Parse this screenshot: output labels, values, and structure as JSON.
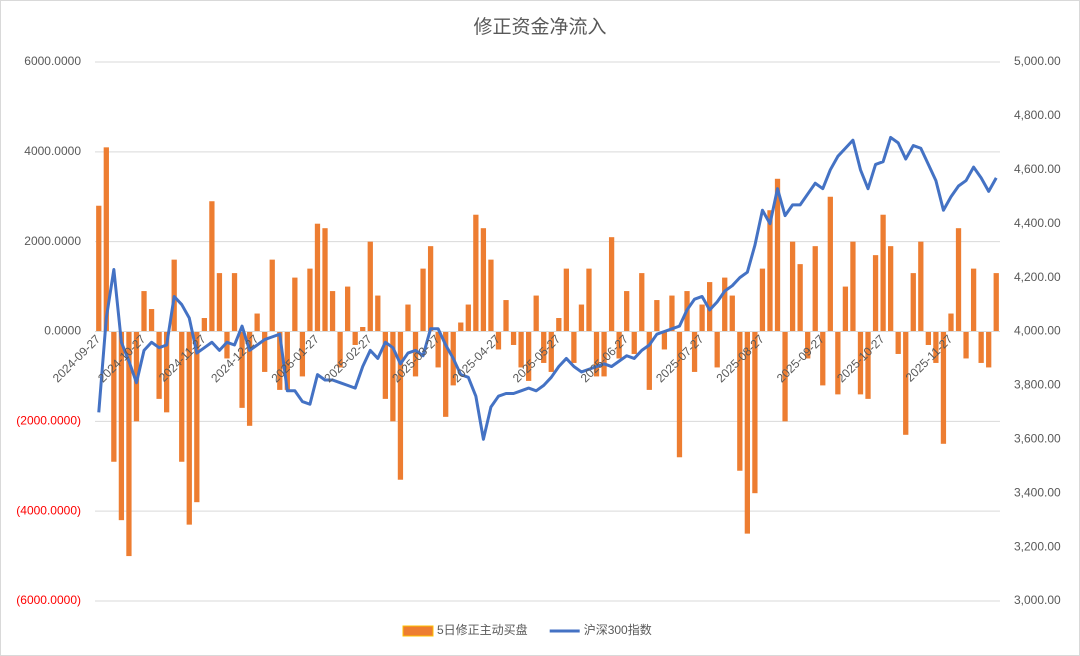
{
  "chart_data": {
    "type": "bar-line",
    "title": "修正资金净流入",
    "categories": [
      "2024-09-27",
      null,
      null,
      null,
      null,
      null,
      "2024-10-27",
      null,
      null,
      null,
      null,
      null,
      null,
      null,
      "2024-11-27",
      null,
      null,
      null,
      null,
      null,
      null,
      "2024-12-27",
      null,
      null,
      null,
      null,
      null,
      null,
      null,
      "2025-01-27",
      null,
      null,
      null,
      null,
      null,
      null,
      "2025-02-27",
      null,
      null,
      null,
      null,
      null,
      null,
      null,
      null,
      "2025-03-27",
      null,
      null,
      null,
      null,
      null,
      null,
      null,
      "2025-04-27",
      null,
      null,
      null,
      null,
      null,
      null,
      null,
      "2025-05-27",
      null,
      null,
      null,
      null,
      null,
      null,
      null,
      null,
      "2025-06-27",
      null,
      null,
      null,
      null,
      null,
      null,
      null,
      null,
      null,
      "2025-07-27",
      null,
      null,
      null,
      null,
      null,
      null,
      null,
      "2025-08-27",
      null,
      null,
      null,
      null,
      null,
      null,
      null,
      "2025-09-27",
      null,
      null,
      null,
      null,
      null,
      null,
      null,
      "2025-10-27",
      null,
      null,
      null,
      null,
      null,
      null,
      null,
      null,
      "2025-11-27",
      null,
      null,
      null,
      null,
      null,
      null
    ],
    "series": [
      {
        "name": "5日修正主动买盘",
        "type": "bar",
        "color": "#ed7d31",
        "axis": "y",
        "values": [
          2800,
          4100,
          -2900,
          -4200,
          -5000,
          -2000,
          900,
          500,
          -1500,
          -1800,
          1600,
          -2900,
          -4300,
          -3800,
          300,
          2900,
          1300,
          -600,
          1300,
          -1700,
          -2100,
          400,
          -900,
          1600,
          -1300,
          -1300,
          1200,
          -1000,
          1400,
          2400,
          2300,
          900,
          -800,
          1000,
          -300,
          100,
          2000,
          800,
          -1500,
          -2000,
          -3300,
          600,
          -1000,
          1400,
          1900,
          -800,
          -1900,
          -1200,
          200,
          600,
          2600,
          2300,
          1600,
          -400,
          700,
          -300,
          -800,
          -1100,
          800,
          -700,
          -900,
          300,
          1400,
          -700,
          600,
          1400,
          -1000,
          -1000,
          2100,
          -600,
          900,
          -500,
          1300,
          -1300,
          700,
          -400,
          800,
          -2800,
          900,
          -900,
          600,
          1100,
          -800,
          1200,
          800,
          -3100,
          -4500,
          -3600,
          1400,
          2700,
          3400,
          -2000,
          2000,
          1500,
          -600,
          1900,
          -1200,
          3000,
          -1400,
          1000,
          2000,
          -1400,
          -1500,
          1700,
          2600,
          1900,
          -500,
          -2300,
          1300,
          2000,
          -300,
          -700,
          -2500,
          400,
          2300,
          -600,
          1400,
          -700,
          -800,
          1300
        ]
      },
      {
        "name": "沪深300指数",
        "type": "line",
        "color": "#4472c4",
        "axis": "y2",
        "values": [
          3700,
          4050,
          4230,
          3960,
          3890,
          3810,
          3930,
          3960,
          3940,
          3950,
          4130,
          4100,
          4050,
          3920,
          3940,
          3960,
          3930,
          3960,
          3950,
          4020,
          3930,
          3950,
          3970,
          3980,
          3990,
          3780,
          3780,
          3740,
          3730,
          3840,
          3820,
          3820,
          3810,
          3800,
          3790,
          3870,
          3930,
          3900,
          3960,
          3940,
          3880,
          3920,
          3930,
          3910,
          4010,
          4010,
          3950,
          3900,
          3840,
          3830,
          3760,
          3600,
          3720,
          3760,
          3770,
          3770,
          3780,
          3790,
          3780,
          3800,
          3830,
          3870,
          3900,
          3870,
          3850,
          3860,
          3870,
          3880,
          3870,
          3890,
          3910,
          3900,
          3930,
          3950,
          3990,
          4000,
          4010,
          4020,
          4080,
          4120,
          4130,
          4080,
          4110,
          4150,
          4170,
          4200,
          4220,
          4320,
          4450,
          4400,
          4530,
          4430,
          4470,
          4470,
          4510,
          4550,
          4530,
          4600,
          4650,
          4680,
          4710,
          4600,
          4530,
          4620,
          4630,
          4720,
          4700,
          4640,
          4690,
          4680,
          4620,
          4560,
          4450,
          4500,
          4540,
          4560,
          4610,
          4570,
          4520,
          4570
        ]
      }
    ],
    "ylim": [
      -6000,
      6000
    ],
    "yticks": [
      {
        "value": -6000,
        "label": "(6000.0000)"
      },
      {
        "value": -4000,
        "label": "(4000.0000)"
      },
      {
        "value": -2000,
        "label": "(2000.0000)"
      },
      {
        "value": 0,
        "label": "0.0000"
      },
      {
        "value": 2000,
        "label": "2000.0000"
      },
      {
        "value": 4000,
        "label": "4000.0000"
      },
      {
        "value": 6000,
        "label": "6000.0000"
      }
    ],
    "y2lim": [
      3000,
      5000
    ],
    "y2ticks": [
      {
        "value": 3000,
        "label": "3,000.00"
      },
      {
        "value": 3200,
        "label": "3,200.00"
      },
      {
        "value": 3400,
        "label": "3,400.00"
      },
      {
        "value": 3600,
        "label": "3,600.00"
      },
      {
        "value": 3800,
        "label": "3,800.00"
      },
      {
        "value": 4000,
        "label": "4,000.00"
      },
      {
        "value": 4200,
        "label": "4,200.00"
      },
      {
        "value": 4400,
        "label": "4,400.00"
      },
      {
        "value": 4600,
        "label": "4,600.00"
      },
      {
        "value": 4800,
        "label": "4,800.00"
      },
      {
        "value": 5000,
        "label": "5,000.00"
      }
    ],
    "negative_tick_color": "#ff0000",
    "grid": true,
    "legend": "bottom"
  }
}
